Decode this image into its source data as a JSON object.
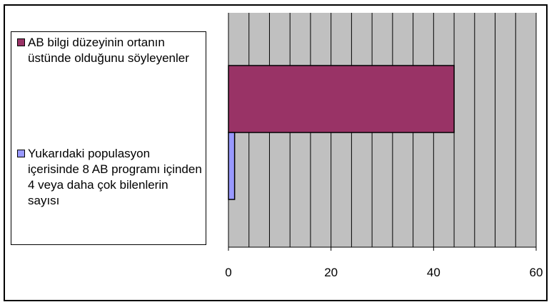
{
  "chart_data": {
    "type": "bar",
    "orientation": "horizontal",
    "series": [
      {
        "name": "AB bilgi düzeyinin ortanın üstünde olduğunu söyleyenler",
        "value": 44,
        "color": "#993366"
      },
      {
        "name": "Yukarıdaki populasyon içerisinde 8 AB programı içinden 4 veya daha çok bilenlerin sayısı",
        "value": 1.2,
        "color": "#9999ff"
      }
    ],
    "xlim": [
      0,
      60
    ],
    "x_ticks": [
      "0",
      "20",
      "40",
      "60"
    ],
    "grid": "vertical",
    "plot_background": "#c0c0c0",
    "legend_position": "left"
  }
}
